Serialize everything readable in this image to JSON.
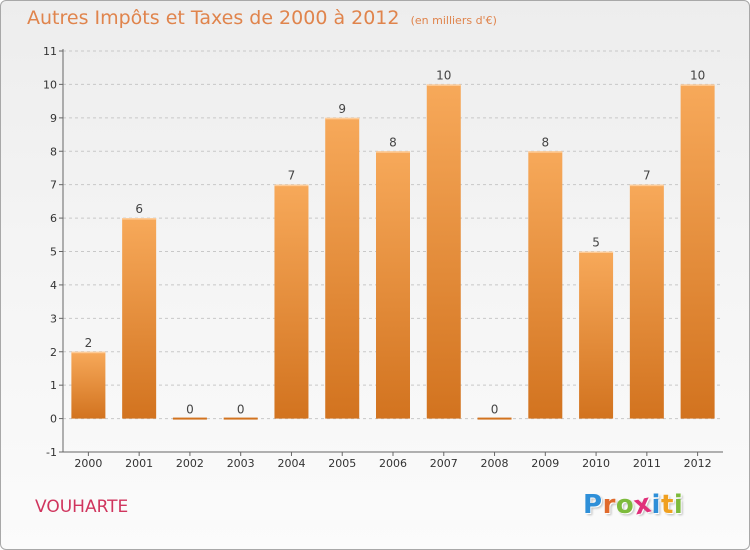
{
  "header": {
    "title": "Autres Impôts et Taxes de 2000 à 2012",
    "unit": "(en milliers d'€)"
  },
  "footer": {
    "commune": "VOUHARTE",
    "brand": "Proxiti",
    "brand_letters": [
      "P",
      "r",
      "o",
      "x",
      "i",
      "t",
      "i"
    ],
    "brand_colors": [
      "#2e8fd8",
      "#e06a2c",
      "#7dbb3c",
      "#e0307a",
      "#2e8fd8",
      "#f0a020",
      "#7dbb3c"
    ]
  },
  "colors": {
    "bar_top": "#f7a95a",
    "bar_bottom": "#d2731f",
    "title": "#e0844c",
    "commune": "#d0355e",
    "grid": "#c8c8c8"
  },
  "chart_data": {
    "type": "bar",
    "title": "Autres Impôts et Taxes de 2000 à 2012",
    "subtitle": "(en milliers d'€)",
    "categories": [
      "2000",
      "2001",
      "2002",
      "2003",
      "2004",
      "2005",
      "2006",
      "2007",
      "2008",
      "2009",
      "2010",
      "2011",
      "2012"
    ],
    "values": [
      2,
      6,
      0,
      0,
      7,
      9,
      8,
      10,
      0,
      8,
      5,
      7,
      10
    ],
    "y_ticks": [
      "-1",
      "0",
      "1",
      "2",
      "3",
      "4",
      "5",
      "6",
      "7",
      "8",
      "9",
      "10",
      "11"
    ],
    "ylim": [
      -1,
      11
    ],
    "grid": "dashed horizontal",
    "legend": "none"
  }
}
